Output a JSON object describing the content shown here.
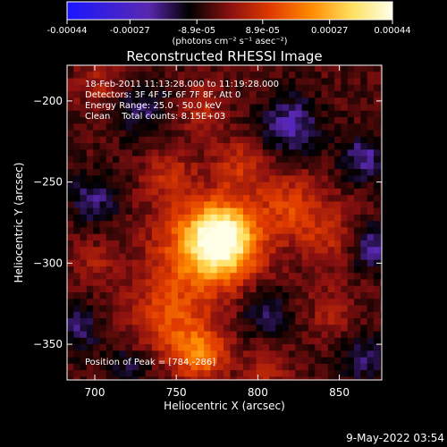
{
  "colorbar": {
    "tick_labels": [
      "-0.00044",
      "-0.00027",
      "-8.9e-05",
      "8.9e-05",
      "0.00027",
      "0.00044"
    ],
    "tick_values": [
      -0.00044,
      -0.00027,
      -8.9e-05,
      8.9e-05,
      0.00027,
      0.00044
    ],
    "range": [
      -0.00044,
      0.00044
    ],
    "units_label": "(photons cm⁻² s⁻¹ asec⁻²)",
    "colors": [
      "#1a16ff",
      "#3a20d8",
      "#5a28b0",
      "#000000",
      "#8a1010",
      "#e03a00",
      "#ff8a00",
      "#ffe060",
      "#ffffe8"
    ]
  },
  "annotations": {
    "line1": "18-Feb-2011 11:13:28.000 to 11:19:28.000",
    "line2": "Detectors: 3F 4F 5F 6F 7F 8F, Att 0",
    "line3": "Energy Range: 25.0 - 50.0 keV",
    "line4": "Clean    Total counts: 8.15E+03",
    "peak": "Position of Peak = [784,-286]"
  },
  "timestamp": "9-May-2022 03:54",
  "chart_data": {
    "type": "heatmap",
    "title": "Reconstructed RHESSI Image",
    "xlabel": "Heliocentric X (arcsec)",
    "ylabel": "Heliocentric Y (arcsec)",
    "xlim": [
      683,
      876
    ],
    "ylim": [
      -372,
      -178
    ],
    "xticks": [
      700,
      750,
      800,
      850
    ],
    "yticks": [
      -200,
      -250,
      -300,
      -350
    ],
    "xtick_labels": [
      "700",
      "750",
      "800",
      "850"
    ],
    "ytick_labels": [
      "−200",
      "−250",
      "−300",
      "−350"
    ],
    "peak_position": [
      784,
      -286
    ],
    "blobs": [
      {
        "x": 778,
        "y": -285,
        "amp": 0.00042,
        "sigma": 14
      },
      {
        "x": 766,
        "y": -292,
        "amp": 0.00022,
        "sigma": 22
      },
      {
        "x": 765,
        "y": -356,
        "amp": 0.00024,
        "sigma": 11
      },
      {
        "x": 745,
        "y": -335,
        "amp": 0.00016,
        "sigma": 16
      },
      {
        "x": 820,
        "y": -265,
        "amp": 0.00015,
        "sigma": 14
      },
      {
        "x": 790,
        "y": -240,
        "amp": 0.00012,
        "sigma": 12
      },
      {
        "x": 745,
        "y": -245,
        "amp": 0.00011,
        "sigma": 11
      },
      {
        "x": 765,
        "y": -205,
        "amp": 0.0001,
        "sigma": 10
      },
      {
        "x": 705,
        "y": -190,
        "amp": 9e-05,
        "sigma": 11
      },
      {
        "x": 845,
        "y": -285,
        "amp": 0.0001,
        "sigma": 14
      },
      {
        "x": 845,
        "y": -330,
        "amp": 8e-05,
        "sigma": 10
      },
      {
        "x": 805,
        "y": -365,
        "amp": 0.0001,
        "sigma": 9
      },
      {
        "x": 700,
        "y": -300,
        "amp": 7e-05,
        "sigma": 10
      },
      {
        "x": 728,
        "y": -205,
        "amp": -0.00012,
        "sigma": 12
      },
      {
        "x": 820,
        "y": -215,
        "amp": -0.00016,
        "sigma": 13
      },
      {
        "x": 700,
        "y": -260,
        "amp": -0.00013,
        "sigma": 11
      },
      {
        "x": 865,
        "y": -235,
        "amp": -0.00015,
        "sigma": 10
      },
      {
        "x": 870,
        "y": -290,
        "amp": -0.00016,
        "sigma": 10
      },
      {
        "x": 805,
        "y": -330,
        "amp": -0.00013,
        "sigma": 10
      },
      {
        "x": 720,
        "y": -365,
        "amp": -0.0001,
        "sigma": 10
      },
      {
        "x": 865,
        "y": -360,
        "amp": -0.00011,
        "sigma": 11
      },
      {
        "x": 690,
        "y": -340,
        "amp": -0.00012,
        "sigma": 10
      }
    ]
  }
}
